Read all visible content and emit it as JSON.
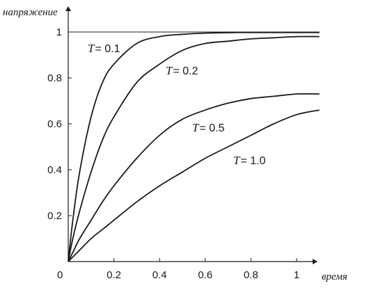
{
  "chart_data": {
    "type": "line",
    "xlabel": "время",
    "ylabel": "напряжение",
    "origin_label": "0",
    "xlim": [
      0,
      1.12
    ],
    "ylim": [
      0,
      1.05
    ],
    "x_ticks": [
      {
        "value": 0.2,
        "label": "0.2"
      },
      {
        "value": 0.4,
        "label": "0.4"
      },
      {
        "value": 0.6,
        "label": "0.6"
      },
      {
        "value": 0.8,
        "label": "0.8"
      },
      {
        "value": 1.0,
        "label": "1"
      }
    ],
    "y_ticks": [
      {
        "value": 0.2,
        "label": "0.2"
      },
      {
        "value": 0.4,
        "label": "0.4"
      },
      {
        "value": 0.6,
        "label": "0.6"
      },
      {
        "value": 0.8,
        "label": "0.8"
      },
      {
        "value": 1.0,
        "label": "1"
      }
    ],
    "reference_line": {
      "y": 1.0
    },
    "x": [
      0,
      0.02,
      0.05,
      0.1,
      0.15,
      0.2,
      0.3,
      0.4,
      0.5,
      0.6,
      0.7,
      0.8,
      0.9,
      1.0,
      1.1
    ],
    "series": [
      {
        "T": 0.1,
        "label_var": "T",
        "label_text": "= 0.1",
        "values": [
          0,
          0.18,
          0.39,
          0.63,
          0.78,
          0.86,
          0.95,
          0.98,
          0.99,
          0.995,
          0.997,
          0.998,
          0.998,
          0.998,
          0.998
        ]
      },
      {
        "T": 0.2,
        "label_var": "T",
        "label_text": "= 0.2",
        "values": [
          0,
          0.1,
          0.22,
          0.39,
          0.53,
          0.63,
          0.78,
          0.86,
          0.92,
          0.95,
          0.96,
          0.97,
          0.975,
          0.98,
          0.98
        ]
      },
      {
        "T": 0.5,
        "label_var": "T",
        "label_text": "= 0.5",
        "values": [
          0,
          0.04,
          0.1,
          0.18,
          0.26,
          0.33,
          0.45,
          0.55,
          0.62,
          0.66,
          0.69,
          0.71,
          0.72,
          0.73,
          0.73
        ]
      },
      {
        "T": 1.0,
        "label_var": "T",
        "label_text": "= 1.0",
        "values": [
          0,
          0.02,
          0.05,
          0.1,
          0.14,
          0.18,
          0.26,
          0.33,
          0.39,
          0.45,
          0.5,
          0.55,
          0.6,
          0.64,
          0.66
        ]
      }
    ]
  }
}
